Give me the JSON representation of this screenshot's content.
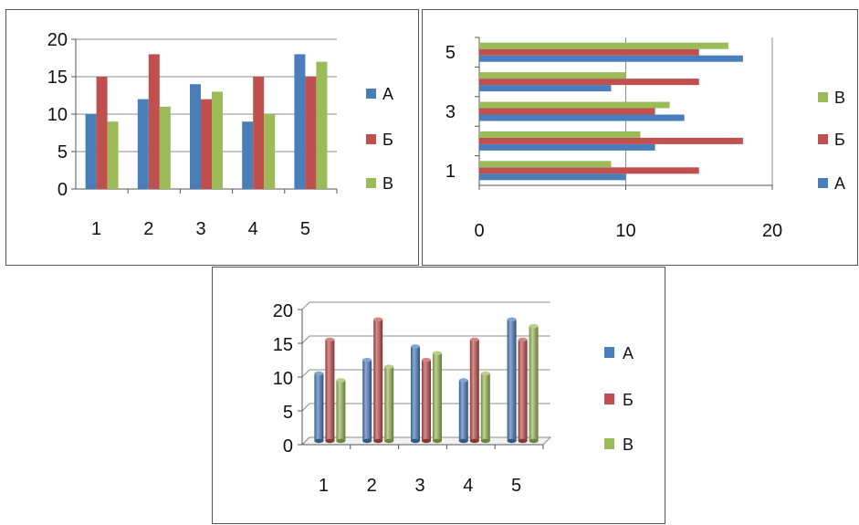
{
  "colors": {
    "A": "#4a7ebb",
    "B": "#c0504d",
    "V": "#9bbb59",
    "grid": "#8c8c8c",
    "axis": "#555555"
  },
  "chart_data": [
    {
      "type": "bar",
      "orientation": "vertical",
      "categories": [
        "1",
        "2",
        "3",
        "4",
        "5"
      ],
      "series": [
        {
          "name": "А",
          "values": [
            10,
            12,
            14,
            9,
            18
          ]
        },
        {
          "name": "Б",
          "values": [
            15,
            18,
            12,
            15,
            15
          ]
        },
        {
          "name": "В",
          "values": [
            9,
            11,
            13,
            10,
            17
          ]
        }
      ],
      "yticks": [
        "0",
        "5",
        "10",
        "15",
        "20"
      ],
      "ylim": [
        0,
        20
      ],
      "grid": true,
      "legend": "right"
    },
    {
      "type": "bar",
      "orientation": "horizontal",
      "categories": [
        "1",
        "2",
        "3",
        "4",
        "5"
      ],
      "category_tick_labels": [
        "1",
        "3",
        "5"
      ],
      "series": [
        {
          "name": "А",
          "values": [
            10,
            12,
            14,
            9,
            18
          ]
        },
        {
          "name": "Б",
          "values": [
            15,
            18,
            12,
            15,
            15
          ]
        },
        {
          "name": "В",
          "values": [
            9,
            11,
            13,
            10,
            17
          ]
        }
      ],
      "xticks": [
        "0",
        "10",
        "20"
      ],
      "xlim": [
        0,
        20
      ],
      "grid": true,
      "legend": "right",
      "legend_order": [
        "В",
        "Б",
        "А"
      ]
    },
    {
      "type": "bar",
      "orientation": "vertical-3d",
      "categories": [
        "1",
        "2",
        "3",
        "4",
        "5"
      ],
      "series": [
        {
          "name": "А",
          "values": [
            10,
            12,
            14,
            9,
            18
          ]
        },
        {
          "name": "Б",
          "values": [
            15,
            18,
            12,
            15,
            15
          ]
        },
        {
          "name": "В",
          "values": [
            9,
            11,
            13,
            10,
            17
          ]
        }
      ],
      "yticks": [
        "0",
        "5",
        "10",
        "15",
        "20"
      ],
      "ylim": [
        0,
        20
      ],
      "grid": true,
      "legend": "right"
    }
  ]
}
